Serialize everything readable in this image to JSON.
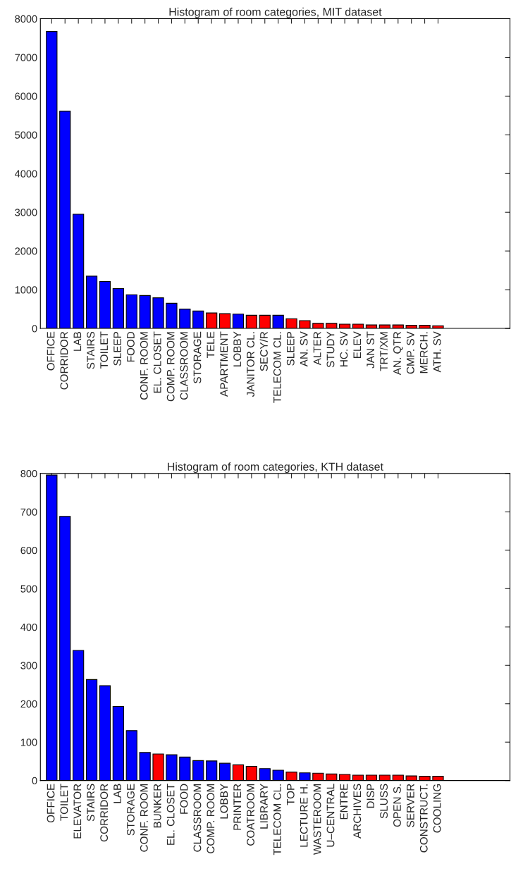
{
  "chart_data": [
    {
      "type": "bar",
      "title": "Histogram of room categories, MIT dataset",
      "categories": [
        "OFFICE",
        "CORRIDOR",
        "LAB",
        "STAIRS",
        "TOILET",
        "SLEEP",
        "FOOD",
        "CONF. ROOM",
        "EL. CLOSET",
        "COMP. ROOM",
        "CLASSROOM",
        "STORAGE",
        "TELE",
        "APARTMENT",
        "LOBBY",
        "JANITOR CL.",
        "SECY/R",
        "TELECOM CL.",
        "SLEEP",
        "AN. SV",
        "ALTER",
        "STUDY",
        "HC. SV",
        "ELEV",
        "JAN ST",
        "TRT/XM",
        "AN. QTR",
        "CMP. SV",
        "MERCH.",
        "ATH. SV"
      ],
      "values": [
        7670,
        5610,
        2950,
        1350,
        1210,
        1030,
        870,
        850,
        790,
        650,
        500,
        450,
        400,
        380,
        370,
        340,
        340,
        340,
        250,
        200,
        130,
        130,
        110,
        110,
        90,
        90,
        90,
        80,
        80,
        70
      ],
      "colors": [
        "#0000ff",
        "#0000ff",
        "#0000ff",
        "#0000ff",
        "#0000ff",
        "#0000ff",
        "#0000ff",
        "#0000ff",
        "#0000ff",
        "#0000ff",
        "#0000ff",
        "#0000ff",
        "#ff0000",
        "#ff0000",
        "#0000ff",
        "#ff0000",
        "#ff0000",
        "#0000ff",
        "#ff0000",
        "#ff0000",
        "#ff0000",
        "#ff0000",
        "#ff0000",
        "#ff0000",
        "#ff0000",
        "#ff0000",
        "#ff0000",
        "#ff0000",
        "#ff0000",
        "#ff0000"
      ],
      "ylim": [
        0,
        8000
      ],
      "yticks": [
        0,
        1000,
        2000,
        3000,
        4000,
        5000,
        6000,
        7000,
        8000
      ],
      "grid": false,
      "legend": false
    },
    {
      "type": "bar",
      "title": "Histogram of room categories, KTH dataset",
      "categories": [
        "OFFICE",
        "TOILET",
        "ELEVATOR",
        "STAIRS",
        "CORRIDOR",
        "LAB",
        "STORAGE",
        "CONF. ROOM",
        "BUNKER",
        "EL. CLOSET",
        "FOOD",
        "CLASSROOM",
        "COMP. ROOM",
        "LOBBY",
        "PRINTER",
        "COATROOM",
        "LIBRARY",
        "TELECOM CL.",
        "TOP",
        "LECTURE H.",
        "WASTEROOM",
        "U–CENTRAL",
        "ENTRE",
        "ARCHIVES",
        "DISP",
        "SLUSS",
        "OPEN S.",
        "SERVER",
        "CONSTRUCT.",
        "COOLING"
      ],
      "values": [
        796,
        688,
        339,
        263,
        247,
        193,
        130,
        73,
        69,
        67,
        61,
        52,
        51,
        45,
        41,
        37,
        31,
        27,
        22,
        20,
        19,
        17,
        16,
        14,
        14,
        14,
        14,
        12,
        11,
        11
      ],
      "colors": [
        "#0000ff",
        "#0000ff",
        "#0000ff",
        "#0000ff",
        "#0000ff",
        "#0000ff",
        "#0000ff",
        "#0000ff",
        "#ff0000",
        "#0000ff",
        "#0000ff",
        "#0000ff",
        "#0000ff",
        "#0000ff",
        "#ff0000",
        "#ff0000",
        "#0000ff",
        "#0000ff",
        "#ff0000",
        "#0000ff",
        "#ff0000",
        "#ff0000",
        "#ff0000",
        "#ff0000",
        "#ff0000",
        "#ff0000",
        "#ff0000",
        "#ff0000",
        "#ff0000",
        "#ff0000"
      ],
      "ylim": [
        0,
        800
      ],
      "yticks": [
        0,
        100,
        200,
        300,
        400,
        500,
        600,
        700,
        800
      ],
      "grid": false,
      "legend": false
    }
  ]
}
